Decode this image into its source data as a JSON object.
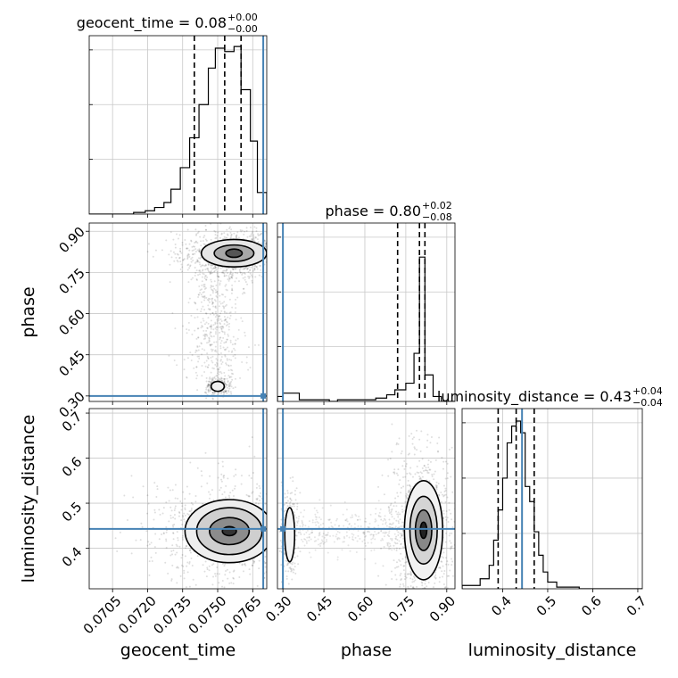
{
  "chart_data": {
    "type": "corner",
    "parameters": [
      "geocent_time",
      "phase",
      "luminosity_distance"
    ],
    "truth": {
      "geocent_time": 0.07695,
      "phase": 0.3,
      "luminosity_distance": 0.443
    },
    "titles": [
      {
        "param": "geocent_time",
        "label": "geocent_time = 0.08",
        "plus": "+0.00",
        "minus": "−0.00"
      },
      {
        "param": "phase",
        "label": "phase = 0.80",
        "plus": "+0.02",
        "minus": "−0.08"
      },
      {
        "param": "luminosity_distance",
        "label": "luminosity_distance = 0.43",
        "plus": "+0.04",
        "minus": "−0.04"
      }
    ],
    "axes": {
      "geocent_time": {
        "range": [
          0.0695,
          0.0771
        ],
        "ticks": [
          "0.0705",
          "0.0720",
          "0.0735",
          "0.0750",
          "0.0765"
        ],
        "tick_values": [
          0.0705,
          0.072,
          0.0735,
          0.075,
          0.0765
        ]
      },
      "phase": {
        "range": [
          0.28,
          0.93
        ],
        "ticks": [
          "0.30",
          "0.45",
          "0.60",
          "0.75",
          "0.90"
        ],
        "tick_values": [
          0.3,
          0.45,
          0.6,
          0.75,
          0.9
        ]
      },
      "luminosity_distance": {
        "range": [
          0.31,
          0.71
        ],
        "ticks": [
          "0.4",
          "0.5",
          "0.6",
          "0.7"
        ],
        "tick_values": [
          0.4,
          0.5,
          0.6,
          0.7
        ]
      }
    },
    "histograms": [
      {
        "param": "geocent_time",
        "bin_edges": [
          0.0695,
          0.0714,
          0.0719,
          0.0723,
          0.0727,
          0.073,
          0.0734,
          0.0738,
          0.0742,
          0.0746,
          0.0749,
          0.0753,
          0.0757,
          0.076,
          0.0764,
          0.0767,
          0.0771
        ],
        "counts": [
          0.0,
          0.01,
          0.02,
          0.04,
          0.07,
          0.15,
          0.28,
          0.46,
          0.66,
          0.88,
          1.0,
          0.98,
          1.01,
          0.75,
          0.44,
          0.13
        ],
        "quantiles": [
          0.074,
          0.0753,
          0.076
        ]
      },
      {
        "param": "phase",
        "bin_edges": [
          0.28,
          0.3,
          0.33,
          0.36,
          0.4,
          0.43,
          0.47,
          0.5,
          0.54,
          0.57,
          0.61,
          0.64,
          0.68,
          0.71,
          0.75,
          0.78,
          0.8,
          0.82,
          0.85,
          0.88,
          0.93
        ],
        "counts": [
          0.03,
          0.05,
          0.05,
          0.01,
          0.01,
          0.01,
          0.0,
          0.01,
          0.01,
          0.01,
          0.01,
          0.02,
          0.04,
          0.07,
          0.11,
          0.29,
          0.87,
          0.16,
          0.03,
          0.0
        ],
        "quantiles": [
          0.72,
          0.8,
          0.82
        ]
      },
      {
        "param": "luminosity_distance",
        "bin_edges": [
          0.31,
          0.35,
          0.37,
          0.38,
          0.39,
          0.4,
          0.41,
          0.42,
          0.43,
          0.44,
          0.45,
          0.46,
          0.47,
          0.48,
          0.49,
          0.5,
          0.52,
          0.54,
          0.57,
          0.71
        ],
        "counts": [
          0.02,
          0.06,
          0.14,
          0.29,
          0.47,
          0.66,
          0.87,
          0.97,
          1.0,
          0.93,
          0.61,
          0.52,
          0.34,
          0.2,
          0.1,
          0.04,
          0.01,
          0.01,
          0.0
        ],
        "quantiles": [
          0.39,
          0.43,
          0.47
        ]
      }
    ],
    "density_2d": [
      {
        "x": "geocent_time",
        "y": "phase",
        "modes": [
          {
            "cx": 0.0757,
            "cy": 0.82,
            "levels": [
              {
                "rx": 0.00035,
                "ry": 0.015,
                "fill": "#555555"
              },
              {
                "rx": 0.00085,
                "ry": 0.03,
                "fill": "#a8a8a8"
              },
              {
                "rx": 0.0014,
                "ry": 0.05,
                "fill": "#e6e6e6"
              }
            ]
          },
          {
            "cx": 0.075,
            "cy": 0.335,
            "levels": [
              {
                "rx": 0.00028,
                "ry": 0.018,
                "fill": "#f0f0f0"
              }
            ]
          }
        ]
      },
      {
        "x": "geocent_time",
        "y": "luminosity_distance",
        "modes": [
          {
            "cx": 0.0755,
            "cy": 0.438,
            "levels": [
              {
                "rx": 0.0003,
                "ry": 0.01,
                "fill": "#333333"
              },
              {
                "rx": 0.00085,
                "ry": 0.03,
                "fill": "#8c8c8c"
              },
              {
                "rx": 0.0014,
                "ry": 0.052,
                "fill": "#cfcfcf"
              },
              {
                "rx": 0.0019,
                "ry": 0.07,
                "fill": "#eeeeee"
              }
            ]
          }
        ]
      },
      {
        "x": "phase",
        "y": "luminosity_distance",
        "modes": [
          {
            "cx": 0.815,
            "cy": 0.44,
            "levels": [
              {
                "rx": 0.012,
                "ry": 0.018,
                "fill": "#222222"
              },
              {
                "rx": 0.03,
                "ry": 0.045,
                "fill": "#888888"
              },
              {
                "rx": 0.05,
                "ry": 0.075,
                "fill": "#d4d4d4"
              },
              {
                "rx": 0.07,
                "ry": 0.11,
                "fill": "#f2f2f2"
              }
            ]
          },
          {
            "cx": 0.325,
            "cy": 0.43,
            "levels": [
              {
                "rx": 0.018,
                "ry": 0.06,
                "fill": "#f4f4f4"
              }
            ]
          }
        ]
      }
    ],
    "colors": {
      "truth": "#4682b4",
      "hist": "#000000",
      "grid": "#c8c8c8",
      "points": "#000000"
    },
    "grid": true
  }
}
